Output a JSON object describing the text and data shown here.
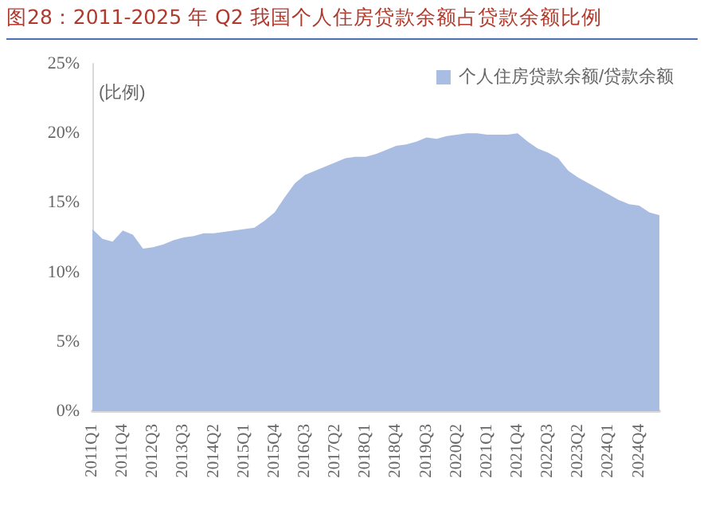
{
  "chart_data": {
    "type": "area",
    "title": "图28：2011-2025 年 Q2 我国个人住房贷款余额占贷款余额比例",
    "ylabel": "(比例)",
    "categories": [
      "2011Q1",
      null,
      null,
      "2011Q4",
      null,
      null,
      "2012Q3",
      null,
      null,
      "2013Q3",
      null,
      null,
      "2014Q2",
      null,
      null,
      "2015Q1",
      null,
      null,
      "2015Q4",
      null,
      null,
      "2016Q3",
      null,
      null,
      "2017Q2",
      null,
      null,
      "2018Q1",
      null,
      null,
      "2018Q4",
      null,
      null,
      "2019Q3",
      null,
      null,
      "2020Q2",
      null,
      null,
      "2021Q1",
      null,
      null,
      "2021Q4",
      null,
      null,
      "2022Q3",
      null,
      null,
      "2023Q2",
      null,
      null,
      "2024Q1",
      null,
      null,
      "2024Q4",
      null,
      null
    ],
    "series": [
      {
        "name": "个人住房贷款余额/贷款余额",
        "color": "#a9bce2",
        "values": [
          13.1,
          12.4,
          12.2,
          13.0,
          12.7,
          11.7,
          11.8,
          12.0,
          12.3,
          12.5,
          12.6,
          12.8,
          12.8,
          12.9,
          13.0,
          13.1,
          13.2,
          13.7,
          14.3,
          15.4,
          16.4,
          17.0,
          17.3,
          17.6,
          17.9,
          18.2,
          18.3,
          18.3,
          18.5,
          18.8,
          19.1,
          19.2,
          19.4,
          19.7,
          19.6,
          19.8,
          19.9,
          20.0,
          20.0,
          19.9,
          19.9,
          19.9,
          20.0,
          19.4,
          18.9,
          18.6,
          18.2,
          17.3,
          16.8,
          16.4,
          16.0,
          15.6,
          15.2,
          14.9,
          14.8,
          14.3,
          14.1
        ]
      }
    ],
    "ylim": [
      0,
      25
    ],
    "yticks": [
      {
        "value": 0,
        "label": "0%"
      },
      {
        "value": 5,
        "label": "5%"
      },
      {
        "value": 10,
        "label": "10%"
      },
      {
        "value": 15,
        "label": "15%"
      },
      {
        "value": 20,
        "label": "20%"
      },
      {
        "value": 25,
        "label": "25%"
      }
    ],
    "grid": false,
    "legend": "top right"
  }
}
